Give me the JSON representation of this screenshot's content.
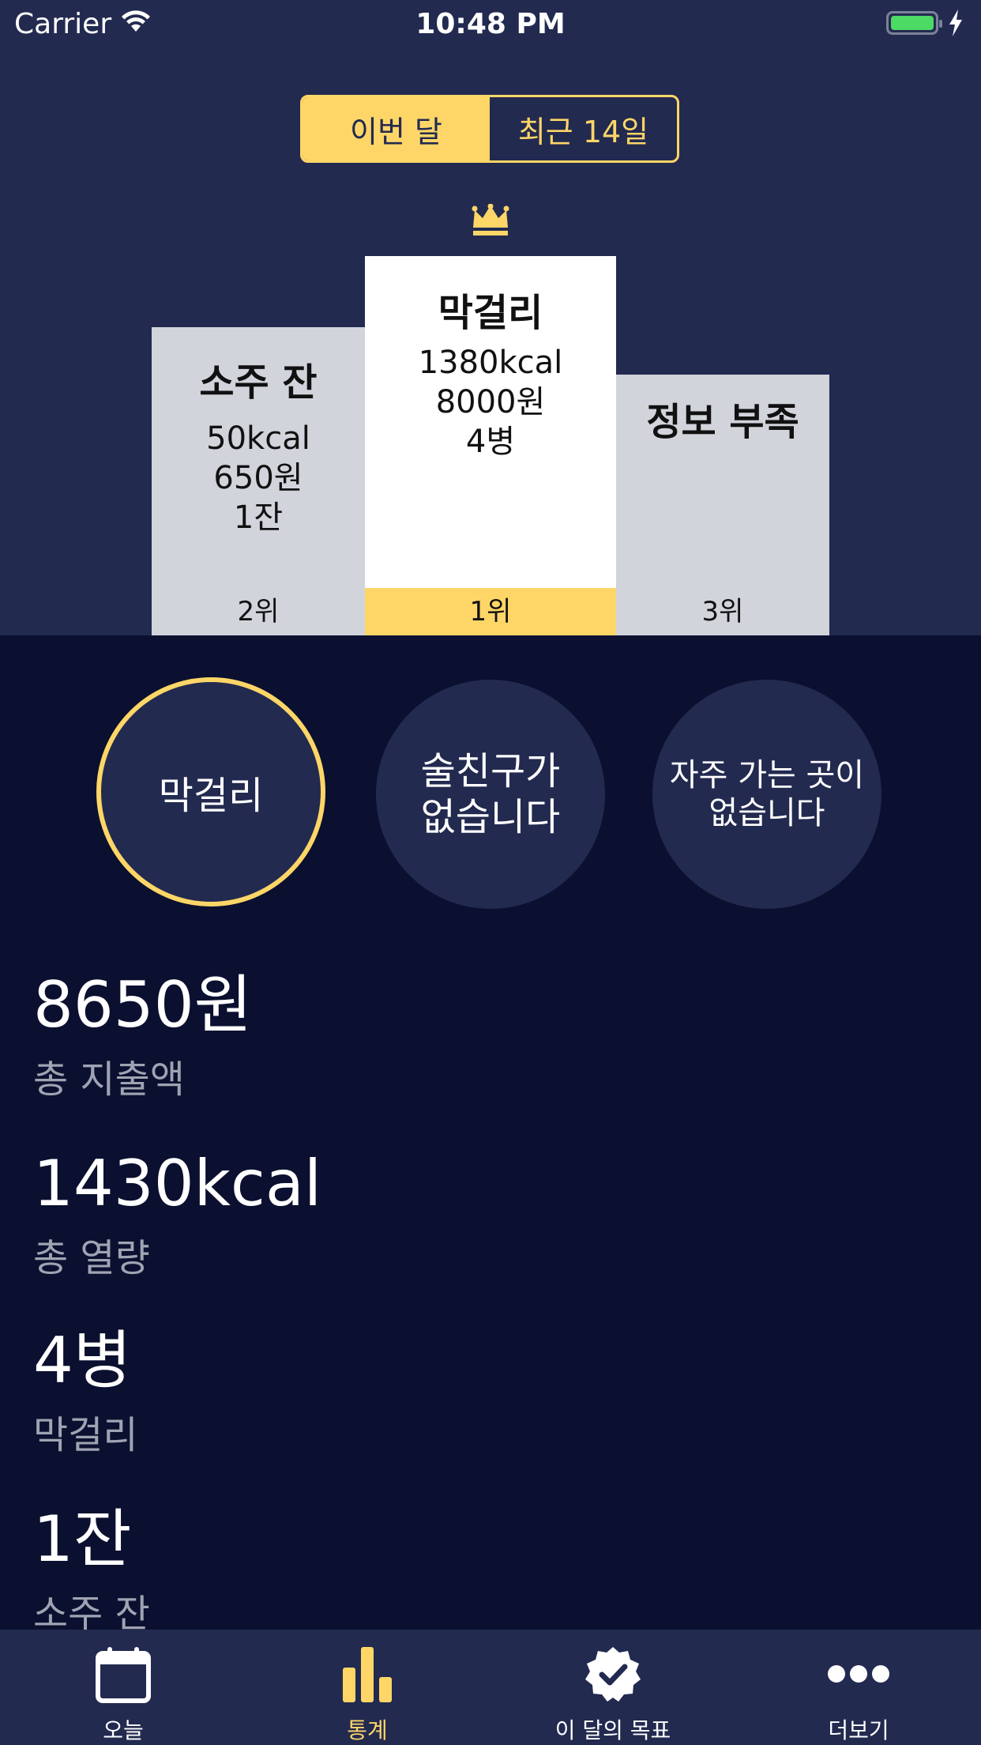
{
  "status_bar": {
    "carrier": "Carrier",
    "time": "10:48 PM",
    "icons": [
      "wifi-icon",
      "battery-icon",
      "charging-bolt-icon"
    ]
  },
  "segmented": {
    "options": [
      "이번 달",
      "최근 14일"
    ],
    "selected": "이번 달"
  },
  "podium": {
    "first": {
      "name": "막걸리",
      "kcal": "1380kcal",
      "price": "8000원",
      "qty": "4병",
      "rank": "1위"
    },
    "second": {
      "name": "소주 잔",
      "kcal": "50kcal",
      "price": "650원",
      "qty": "1잔",
      "rank": "2위"
    },
    "third": {
      "name": "정보 부족",
      "rank": "3위"
    }
  },
  "circles": [
    {
      "text": "막걸리",
      "selected": true
    },
    {
      "text": "술친구가\n없습니다",
      "selected": false
    },
    {
      "text": "자주 가는 곳이\n없습니다",
      "selected": false
    }
  ],
  "stats": [
    {
      "value": "8650원",
      "label": "총 지출액"
    },
    {
      "value": "1430kcal",
      "label": "총 열량"
    },
    {
      "value": "4병",
      "label": "막걸리"
    },
    {
      "value": "1잔",
      "label": "소주 잔"
    }
  ],
  "tabbar": {
    "items": [
      {
        "label": "오늘",
        "icon": "calendar-icon"
      },
      {
        "label": "통계",
        "icon": "bar-chart-icon"
      },
      {
        "label": "이 달의 목표",
        "icon": "checkmark-badge-icon"
      },
      {
        "label": "더보기",
        "icon": "more-dots-icon"
      }
    ],
    "active": "통계"
  },
  "colors": {
    "header_bg": "#232a50",
    "page_bg": "#0b1030",
    "accent": "#fdd667",
    "podium_gray": "#d2d4dc",
    "muted_text": "#a0a3b2"
  }
}
